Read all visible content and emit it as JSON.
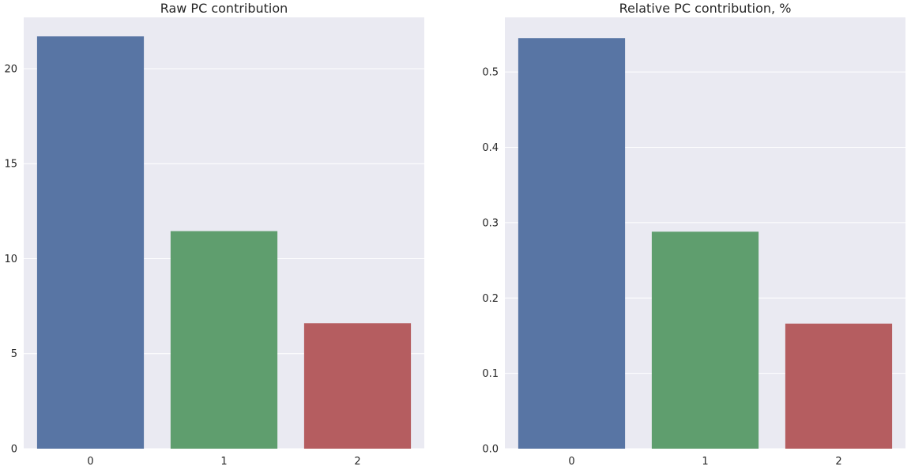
{
  "colors": {
    "background": "#EAEAF2",
    "grid": "#FFFFFF",
    "bars": [
      "#5875A4",
      "#5F9E6E",
      "#B55D60"
    ]
  },
  "chart_data": [
    {
      "type": "bar",
      "title": "Raw PC contribution",
      "categories": [
        "0",
        "1",
        "2"
      ],
      "values": [
        21.7,
        11.45,
        6.6
      ],
      "ylim": [
        0,
        22.7
      ],
      "yticks": [
        0,
        5,
        10,
        15,
        20
      ],
      "ytick_labels": [
        "0",
        "5",
        "10",
        "15",
        "20"
      ],
      "xlabel": "",
      "ylabel": "",
      "grid": true,
      "bar_colors": [
        "#5875A4",
        "#5F9E6E",
        "#B55D60"
      ]
    },
    {
      "type": "bar",
      "title": "Relative PC contribution, %",
      "categories": [
        "0",
        "1",
        "2"
      ],
      "values": [
        0.545,
        0.288,
        0.166
      ],
      "ylim": [
        0,
        0.5725
      ],
      "yticks": [
        0.0,
        0.1,
        0.2,
        0.3,
        0.4,
        0.5
      ],
      "ytick_labels": [
        "0.0",
        "0.1",
        "0.2",
        "0.3",
        "0.4",
        "0.5"
      ],
      "xlabel": "",
      "ylabel": "",
      "grid": true,
      "bar_colors": [
        "#5875A4",
        "#5F9E6E",
        "#B55D60"
      ]
    }
  ]
}
